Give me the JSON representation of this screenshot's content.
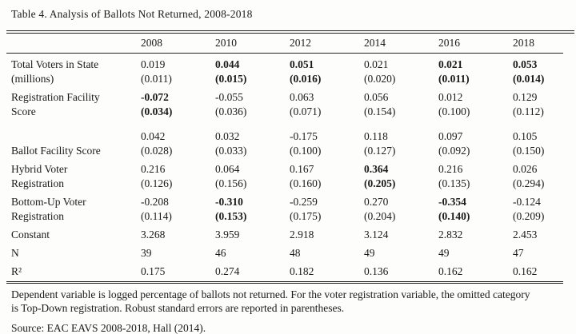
{
  "title": "Table 4. Analysis of Ballots Not Returned, 2008-2018",
  "colors": {
    "text": "#1a1a1a",
    "background": "#fdfdfc",
    "rule": "#1f1f1f"
  },
  "table": {
    "columns": [
      "2008",
      "2010",
      "2012",
      "2014",
      "2016",
      "2018"
    ],
    "rows": [
      {
        "label_lines": [
          "Total Voters in State",
          "(millions)"
        ],
        "cells": [
          {
            "est": "0.019",
            "se": "(0.011)",
            "bold": false
          },
          {
            "est": "0.044",
            "se": "(0.015)",
            "bold": true
          },
          {
            "est": "0.051",
            "se": "(0.016)",
            "bold": true
          },
          {
            "est": "0.021",
            "se": "(0.020)",
            "bold": false
          },
          {
            "est": "0.021",
            "se": "(0.011)",
            "bold": true
          },
          {
            "est": "0.053",
            "se": "(0.014)",
            "bold": true
          }
        ]
      },
      {
        "label_lines": [
          "Registration Facility",
          "Score"
        ],
        "cells": [
          {
            "est": "-0.072",
            "se": "(0.034)",
            "bold": true
          },
          {
            "est": "-0.055",
            "se": "(0.036)",
            "bold": false
          },
          {
            "est": "0.063",
            "se": "(0.071)",
            "bold": false
          },
          {
            "est": "0.056",
            "se": "(0.154)",
            "bold": false
          },
          {
            "est": "0.012",
            "se": "(0.100)",
            "bold": false
          },
          {
            "est": "0.129",
            "se": "(0.112)",
            "bold": false
          }
        ]
      },
      {
        "label_lines": [
          "",
          "Ballot Facility Score"
        ],
        "extra_space": true,
        "cells": [
          {
            "est": "0.042",
            "se": "(0.028)",
            "bold": false
          },
          {
            "est": "0.032",
            "se": "(0.033)",
            "bold": false
          },
          {
            "est": "-0.175",
            "se": "(0.100)",
            "bold": false
          },
          {
            "est": "0.118",
            "se": "(0.127)",
            "bold": false
          },
          {
            "est": "0.097",
            "se": "(0.092)",
            "bold": false
          },
          {
            "est": "0.105",
            "se": "(0.150)",
            "bold": false
          }
        ]
      },
      {
        "label_lines": [
          "Hybrid Voter",
          "Registration"
        ],
        "cells": [
          {
            "est": "0.216",
            "se": "(0.126)",
            "bold": false
          },
          {
            "est": "0.064",
            "se": "(0.156)",
            "bold": false
          },
          {
            "est": "0.167",
            "se": "(0.160)",
            "bold": false
          },
          {
            "est": "0.364",
            "se": "(0.205)",
            "bold": true
          },
          {
            "est": "0.216",
            "se": "(0.135)",
            "bold": false
          },
          {
            "est": "0.026",
            "se": "(0.294)",
            "bold": false
          }
        ]
      },
      {
        "label_lines": [
          "Bottom-Up Voter",
          "Registration"
        ],
        "cells": [
          {
            "est": "-0.208",
            "se": "(0.114)",
            "bold": false
          },
          {
            "est": "-0.310",
            "se": "(0.153)",
            "bold": true
          },
          {
            "est": "-0.259",
            "se": "(0.175)",
            "bold": false
          },
          {
            "est": "0.270",
            "se": "(0.204)",
            "bold": false
          },
          {
            "est": "-0.354",
            "se": "(0.140)",
            "bold": true
          },
          {
            "est": "-0.124",
            "se": "(0.209)",
            "bold": false
          }
        ]
      },
      {
        "label_lines": [
          "Constant"
        ],
        "cells": [
          {
            "est": "3.268",
            "bold": false
          },
          {
            "est": "3.959",
            "bold": false
          },
          {
            "est": "2.918",
            "bold": false
          },
          {
            "est": "3.124",
            "bold": false
          },
          {
            "est": "2.832",
            "bold": false
          },
          {
            "est": "2.453",
            "bold": false
          }
        ]
      },
      {
        "label_lines": [
          "N"
        ],
        "cells": [
          {
            "est": "39",
            "bold": false
          },
          {
            "est": "46",
            "bold": false
          },
          {
            "est": "48",
            "bold": false
          },
          {
            "est": "49",
            "bold": false
          },
          {
            "est": "49",
            "bold": false
          },
          {
            "est": "47",
            "bold": false
          }
        ]
      },
      {
        "label_lines": [
          "R²"
        ],
        "cells": [
          {
            "est": "0.175",
            "bold": false
          },
          {
            "est": "0.274",
            "bold": false
          },
          {
            "est": "0.182",
            "bold": false
          },
          {
            "est": "0.136",
            "bold": false
          },
          {
            "est": "0.162",
            "bold": false
          },
          {
            "est": "0.162",
            "bold": false
          }
        ]
      }
    ]
  },
  "notes": "Dependent variable is logged percentage of ballots not returned. For the voter registration variable, the omitted category is Top-Down registration. Robust standard errors are reported in parentheses.",
  "source": "Source: EAC EAVS 2008-2018, Hall (2014)."
}
